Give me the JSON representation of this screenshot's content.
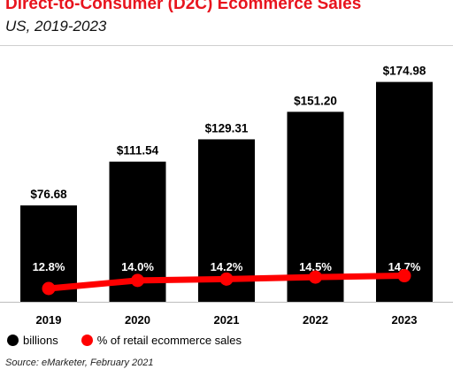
{
  "header": {
    "title": "Direct-to-Consumer (D2C) Ecommerce Sales",
    "subtitle": "US, 2019-2023"
  },
  "legend": {
    "bars_label": "billions",
    "line_label": "% of retail ecommerce sales"
  },
  "footer": {
    "source": "Source: eMarketer, February 2021"
  },
  "colors": {
    "bar": "#000000",
    "line": "#ff0000",
    "title": "#e8141e"
  },
  "chart_data": {
    "type": "bar",
    "categories": [
      "2019",
      "2020",
      "2021",
      "2022",
      "2023"
    ],
    "series": [
      {
        "name": "billions",
        "type": "bar",
        "values": [
          76.68,
          111.54,
          129.31,
          151.2,
          174.98
        ],
        "labels": [
          "$76.68",
          "$111.54",
          "$129.31",
          "$151.20",
          "$174.98"
        ]
      },
      {
        "name": "% of retail ecommerce sales",
        "type": "line",
        "values": [
          12.8,
          14.0,
          14.2,
          14.5,
          14.7
        ],
        "labels": [
          "12.8%",
          "14.0%",
          "14.2%",
          "14.5%",
          "14.7%"
        ]
      }
    ],
    "title": "Direct-to-Consumer (D2C) Ecommerce Sales",
    "xlabel": "",
    "ylabel": "",
    "grid": false,
    "legend_position": "bottom-left"
  }
}
